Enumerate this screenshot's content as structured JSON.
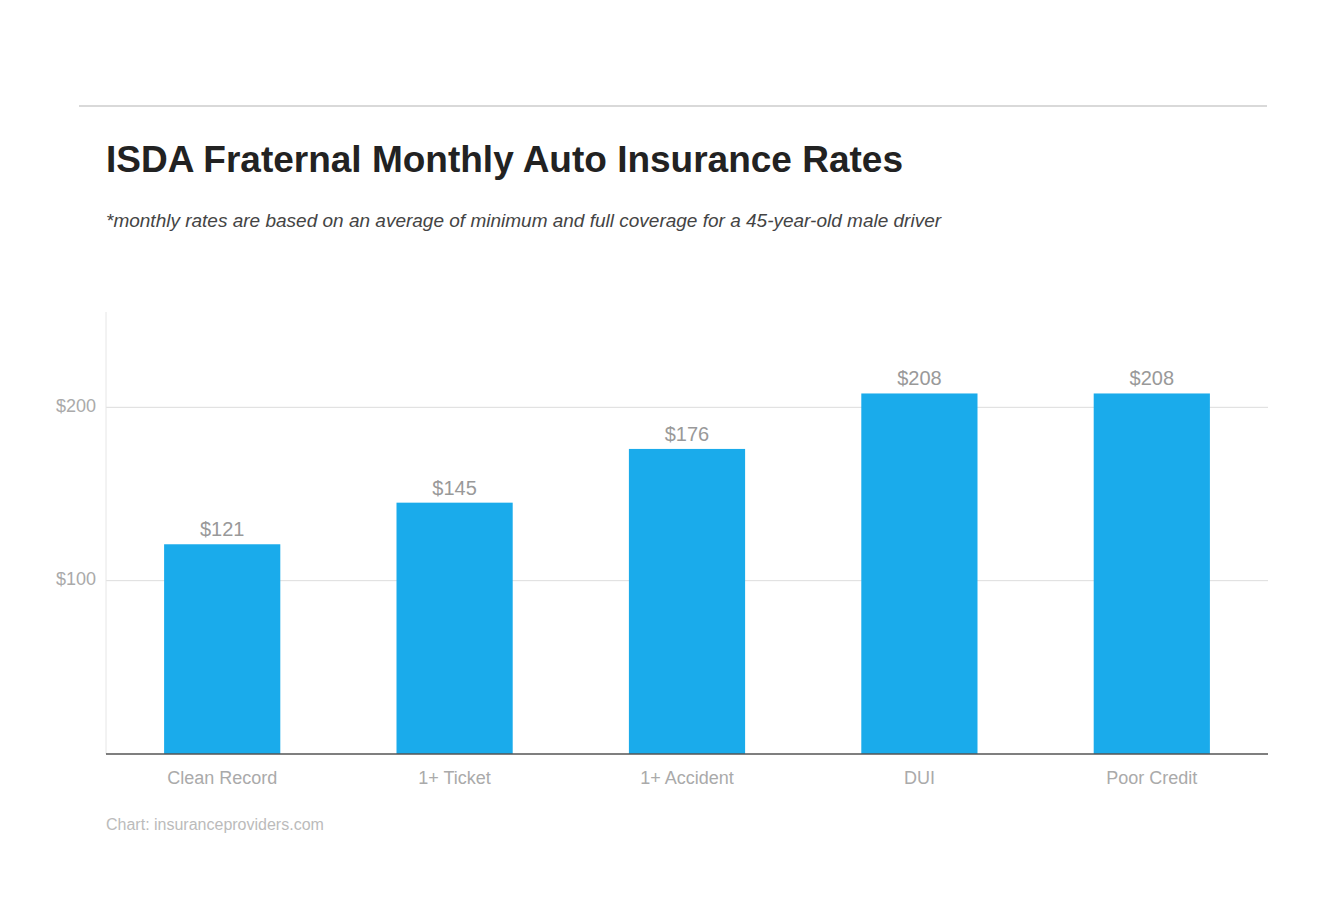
{
  "chart_data": {
    "type": "bar",
    "title": "ISDA Fraternal Monthly Auto Insurance Rates",
    "subtitle": "*monthly rates are based on an average of minimum and full coverage for a 45-year-old male driver",
    "source": "Chart: insuranceproviders.com",
    "categories": [
      "Clean Record",
      "1+ Ticket",
      "1+ Accident",
      "DUI",
      "Poor Credit"
    ],
    "values": [
      121,
      145,
      176,
      208,
      208
    ],
    "value_labels": [
      "$121",
      "$145",
      "$176",
      "$208",
      "$208"
    ],
    "data_labels": true,
    "color": "#1AABEB",
    "ylim": [
      0,
      255
    ],
    "yticks": [
      {
        "value": 100,
        "label": "$100"
      },
      {
        "value": 200,
        "label": "$200"
      }
    ],
    "grid": true
  }
}
